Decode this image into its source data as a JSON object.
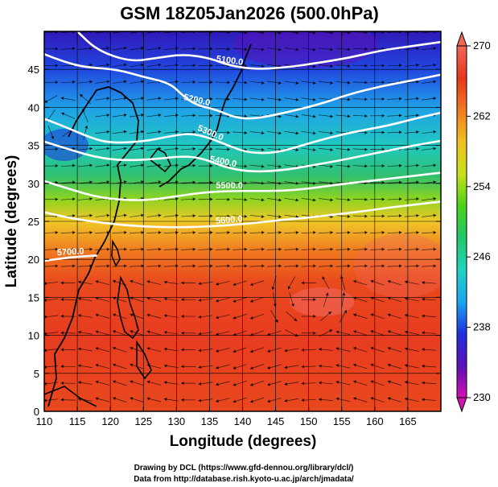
{
  "chart_data": {
    "type": "heatmap",
    "title": "GSM 18Z05Jan2026 (500.0hPa)",
    "xlabel": "Longitude (degrees)",
    "ylabel": "Latitude  (degrees)",
    "xlim": [
      110,
      170
    ],
    "ylim": [
      0,
      50
    ],
    "x_ticks": [
      "110",
      "115",
      "120",
      "125",
      "130",
      "135",
      "140",
      "145",
      "150",
      "155",
      "160",
      "165"
    ],
    "y_ticks": [
      "0",
      "5",
      "10",
      "15",
      "20",
      "25",
      "30",
      "35",
      "40",
      "45"
    ],
    "grid": true,
    "colorbar": {
      "range": [
        230,
        270
      ],
      "ticks": [
        "230",
        "238",
        "246",
        "254",
        "262",
        "270"
      ],
      "colors": [
        "#d40fb0",
        "#5a11b8",
        "#1f2fe0",
        "#19a6f0",
        "#1fd4c0",
        "#20c86a",
        "#4dd21a",
        "#c8e01a",
        "#f0c020",
        "#f07a1e",
        "#e8361e",
        "#f0685a"
      ]
    },
    "field_stops": [
      {
        "lat": 50,
        "color": "#3018b8"
      },
      {
        "lat": 45,
        "color": "#2048e0"
      },
      {
        "lat": 40,
        "color": "#20a0e8"
      },
      {
        "lat": 35,
        "color": "#20c8c0"
      },
      {
        "lat": 31,
        "color": "#30c070"
      },
      {
        "lat": 28,
        "color": "#8cd420"
      },
      {
        "lat": 25,
        "color": "#f0c828"
      },
      {
        "lat": 21,
        "color": "#f07820"
      },
      {
        "lat": 17,
        "color": "#e84a1e"
      },
      {
        "lat": 10,
        "color": "#e83c20"
      },
      {
        "lat": 0,
        "color": "#e8481e"
      }
    ],
    "contours": [
      {
        "label": "5100.0",
        "points": [
          [
            115,
            50
          ],
          [
            118,
            47.5
          ],
          [
            123,
            46
          ],
          [
            127,
            46.5
          ],
          [
            131,
            47
          ],
          [
            135,
            46.5
          ],
          [
            138,
            45.5
          ],
          [
            142,
            45
          ],
          [
            147,
            45.3
          ],
          [
            151,
            45.8
          ],
          [
            156,
            46.5
          ],
          [
            161,
            47.5
          ],
          [
            165,
            48
          ],
          [
            170,
            48.6
          ]
        ]
      },
      {
        "label": "5200.0",
        "points": [
          [
            110,
            47
          ],
          [
            113,
            46
          ],
          [
            116,
            45.3
          ],
          [
            121,
            45
          ],
          [
            125,
            44
          ],
          [
            129,
            43.2
          ],
          [
            131,
            41.5
          ],
          [
            133,
            40.3
          ],
          [
            136,
            39.7
          ],
          [
            139,
            38.6
          ],
          [
            142,
            38.5
          ],
          [
            147,
            39.4
          ],
          [
            152,
            40.5
          ],
          [
            156,
            41.7
          ],
          [
            161,
            42.8
          ],
          [
            166,
            43.6
          ],
          [
            170,
            44.3
          ]
        ]
      },
      {
        "label": "5300.0",
        "points": [
          [
            110,
            38.5
          ],
          [
            113,
            37.5
          ],
          [
            117,
            36
          ],
          [
            120,
            35.3
          ],
          [
            125,
            35.5
          ],
          [
            129,
            36.2
          ],
          [
            132,
            36.6
          ],
          [
            135,
            36
          ],
          [
            138,
            34.9
          ],
          [
            141,
            34
          ],
          [
            145,
            34
          ],
          [
            149,
            35
          ],
          [
            153,
            36
          ],
          [
            157,
            36.8
          ],
          [
            162,
            37.6
          ],
          [
            166,
            38.5
          ],
          [
            170,
            39.3
          ]
        ]
      },
      {
        "label": "5400.0",
        "points": [
          [
            110,
            35.5
          ],
          [
            114,
            34.4
          ],
          [
            118,
            33.4
          ],
          [
            122,
            33
          ],
          [
            127,
            33.2
          ],
          [
            131,
            33.6
          ],
          [
            134,
            33.3
          ],
          [
            137,
            32.2
          ],
          [
            141,
            31.5
          ],
          [
            146,
            31.7
          ],
          [
            150,
            32.3
          ],
          [
            154,
            32.9
          ],
          [
            158,
            33.6
          ],
          [
            162,
            34.3
          ],
          [
            166,
            35
          ],
          [
            170,
            35.6
          ]
        ]
      },
      {
        "label": "5500.0",
        "points": [
          [
            110,
            30.3
          ],
          [
            114,
            29.2
          ],
          [
            118,
            28.2
          ],
          [
            122,
            27.8
          ],
          [
            126,
            27.8
          ],
          [
            130,
            28.3
          ],
          [
            134,
            28.8
          ],
          [
            138,
            29
          ],
          [
            142,
            29
          ],
          [
            146,
            29
          ],
          [
            150,
            29.3
          ],
          [
            154,
            29.8
          ],
          [
            158,
            30.2
          ],
          [
            162,
            30.6
          ],
          [
            166,
            31
          ],
          [
            170,
            31.4
          ]
        ]
      },
      {
        "label": "5600.0",
        "points": [
          [
            110,
            26.2
          ],
          [
            114,
            25.4
          ],
          [
            118,
            24.9
          ],
          [
            122,
            24.5
          ],
          [
            126,
            24.3
          ],
          [
            130,
            24.2
          ],
          [
            134,
            24.3
          ],
          [
            138,
            24.5
          ],
          [
            142,
            24.8
          ],
          [
            146,
            25.2
          ],
          [
            150,
            25.5
          ],
          [
            154,
            25.9
          ],
          [
            158,
            26.3
          ],
          [
            162,
            26.8
          ],
          [
            166,
            27.2
          ],
          [
            170,
            27.6
          ]
        ]
      },
      {
        "label": "5700.0",
        "points": [
          [
            110,
            19.8
          ],
          [
            114,
            20.3
          ],
          [
            118,
            20.5
          ]
        ]
      }
    ],
    "annotations": [
      "Drawing by DCL (https://www.gfd-dennou.org/library/dcl/)",
      "Data from http://database.rish.kyoto-u.ac.jp/arch/jmadata/"
    ]
  }
}
